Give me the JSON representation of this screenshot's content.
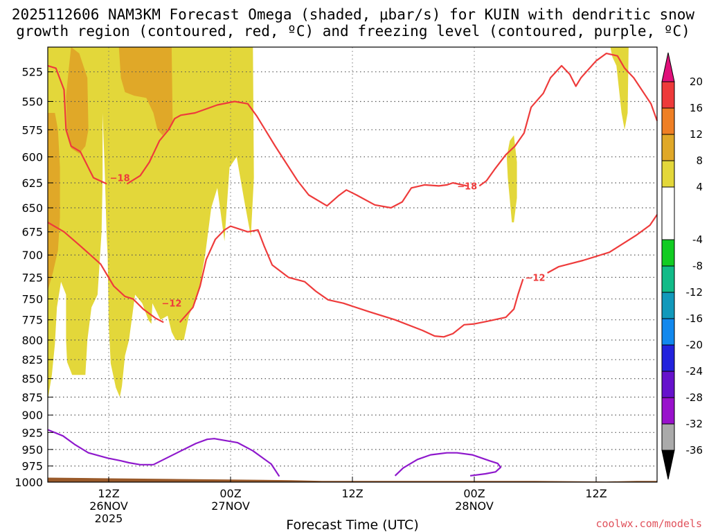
{
  "chart_data": {
    "type": "time-height-contour",
    "title_line1": "2025112606 NAM3KM Forecast Omega (shaded, μbar/s) for KUIN with dendritic snow",
    "title_line2": "growth region (contoured, red, ºC) and freezing level (contoured, purple, ºC)",
    "xlabel": "Forecast Time (UTC)",
    "credit": "coolwx.com/models",
    "x_unit": "hours since 2025-11-26 06Z",
    "xlim": [
      0,
      60
    ],
    "ylim_hPa": [
      1000,
      500
    ],
    "y_ticks": [
      525,
      550,
      575,
      600,
      625,
      650,
      675,
      700,
      725,
      750,
      775,
      800,
      825,
      850,
      875,
      900,
      925,
      950,
      975,
      1000
    ],
    "x_ticks": [
      {
        "hour": 6,
        "lines": [
          "12Z",
          "26NOV",
          "2025"
        ]
      },
      {
        "hour": 18,
        "lines": [
          "00Z",
          "27NOV"
        ]
      },
      {
        "hour": 30,
        "lines": [
          "12Z"
        ]
      },
      {
        "hour": 42,
        "lines": [
          "00Z",
          "28NOV"
        ]
      },
      {
        "hour": 54,
        "lines": [
          "12Z"
        ]
      }
    ],
    "colorbar": {
      "labels": [
        "20",
        "16",
        "12",
        "8",
        "4",
        "-4",
        "-8",
        "-12",
        "-16",
        "-20",
        "-24",
        "-28",
        "-32",
        "-36"
      ],
      "bins": [
        {
          "lo": 16,
          "hi": 20,
          "color": "#ee3a3a"
        },
        {
          "lo": 12,
          "hi": 16,
          "color": "#ef7f24"
        },
        {
          "lo": 8,
          "hi": 12,
          "color": "#e0a828"
        },
        {
          "lo": 4,
          "hi": 8,
          "color": "#e3d73a"
        },
        {
          "lo": -4,
          "hi": 4,
          "color": "#ffffff"
        },
        {
          "lo": -8,
          "hi": -4,
          "color": "#11cc22"
        },
        {
          "lo": -12,
          "hi": -8,
          "color": "#11bb88"
        },
        {
          "lo": -16,
          "hi": -12,
          "color": "#1199bb"
        },
        {
          "lo": -20,
          "hi": -16,
          "color": "#1188ee"
        },
        {
          "lo": -24,
          "hi": -20,
          "color": "#2222dd"
        },
        {
          "lo": -28,
          "hi": -24,
          "color": "#6611cc"
        },
        {
          "lo": -32,
          "hi": -28,
          "color": "#9911cc"
        },
        {
          "lo": -36,
          "hi": -32,
          "color": "#aaaaaa"
        }
      ],
      "top_arrow_color": "#e0107a",
      "bottom_arrow_color": "#000000"
    },
    "contours": [
      {
        "name": "dgz-top-minus18-west",
        "value": -18,
        "label": "−18",
        "color": "#ee3b3b",
        "label_at": [
          7.1,
          620
        ],
        "points": [
          [
            0,
            520
          ],
          [
            0.8,
            522
          ],
          [
            1.6,
            540
          ],
          [
            1.8,
            575
          ],
          [
            2.3,
            590
          ],
          [
            3.2,
            595
          ],
          [
            4.5,
            620
          ],
          [
            5.8,
            626
          ]
        ]
      },
      {
        "name": "dgz-top-minus18-main",
        "value": -18,
        "color": "#ee3b3b",
        "points": [
          [
            7.8,
            626
          ],
          [
            9.1,
            618
          ],
          [
            10,
            605
          ],
          [
            11,
            585
          ],
          [
            11.9,
            575
          ],
          [
            12.5,
            565
          ],
          [
            13.1,
            562
          ],
          [
            14.5,
            560
          ],
          [
            16.7,
            553
          ],
          [
            18.4,
            550
          ],
          [
            19.7,
            552
          ],
          [
            20.6,
            563
          ],
          [
            22.4,
            590
          ],
          [
            24.6,
            623
          ],
          [
            25.7,
            637
          ],
          [
            27.5,
            648
          ],
          [
            28.6,
            638
          ],
          [
            29.4,
            632
          ],
          [
            30.4,
            637
          ],
          [
            32.2,
            647
          ],
          [
            33.8,
            650
          ],
          [
            34.9,
            644
          ],
          [
            35.8,
            630
          ],
          [
            37.1,
            627
          ],
          [
            38.5,
            628
          ],
          [
            39.3,
            627
          ],
          [
            39.9,
            625
          ],
          [
            41.3,
            628
          ]
        ]
      },
      {
        "name": "dgz-top-minus18-east",
        "value": -18,
        "label": "−18",
        "color": "#ee3b3b",
        "label_at": [
          41.3,
          628
        ],
        "points": [
          [
            42.5,
            628
          ],
          [
            43.2,
            623
          ],
          [
            44,
            612
          ],
          [
            45.1,
            598
          ],
          [
            46,
            590
          ],
          [
            46.9,
            578
          ],
          [
            47.6,
            555
          ],
          [
            48.8,
            543
          ],
          [
            49.5,
            530
          ],
          [
            50.6,
            520
          ],
          [
            51.4,
            527
          ],
          [
            52,
            537
          ],
          [
            52.5,
            530
          ],
          [
            54,
            516
          ],
          [
            55,
            510
          ],
          [
            56.1,
            512
          ],
          [
            56.8,
            522
          ],
          [
            57.7,
            530
          ],
          [
            59.4,
            552
          ],
          [
            60,
            567
          ]
        ]
      },
      {
        "name": "dgz-bottom-minus12-west",
        "value": -12,
        "label": "−12",
        "color": "#ee3b3b",
        "label_at": [
          12.2,
          755
        ],
        "points": [
          [
            0,
            665
          ],
          [
            1.6,
            675
          ],
          [
            3.2,
            690
          ],
          [
            5.2,
            710
          ],
          [
            6.5,
            735
          ],
          [
            7.6,
            747
          ],
          [
            8.4,
            750
          ],
          [
            9.4,
            762
          ],
          [
            10.6,
            773
          ],
          [
            11.4,
            778
          ]
        ]
      },
      {
        "name": "dgz-bottom-minus12-main",
        "value": -12,
        "color": "#ee3b3b",
        "points": [
          [
            13,
            778
          ],
          [
            14.3,
            760
          ],
          [
            15,
            735
          ],
          [
            15.6,
            705
          ],
          [
            16.5,
            683
          ],
          [
            17.4,
            673
          ],
          [
            18,
            669
          ],
          [
            19.7,
            675
          ],
          [
            20.7,
            673
          ],
          [
            21.3,
            690
          ],
          [
            22.1,
            711
          ],
          [
            23.7,
            725
          ],
          [
            25.3,
            730
          ],
          [
            26.4,
            741
          ],
          [
            27.6,
            751
          ],
          [
            29.1,
            755
          ],
          [
            31.6,
            765
          ],
          [
            34.2,
            775
          ],
          [
            36.9,
            788
          ],
          [
            38.1,
            795
          ],
          [
            39,
            796
          ],
          [
            39.9,
            792
          ],
          [
            41,
            781
          ],
          [
            42,
            780
          ],
          [
            43.2,
            777
          ],
          [
            45.1,
            772
          ],
          [
            45.9,
            762
          ],
          [
            46.3,
            745
          ],
          [
            46.8,
            727
          ]
        ]
      },
      {
        "name": "dgz-bottom-minus12-east",
        "value": -12,
        "label": "−12",
        "color": "#ee3b3b",
        "label_at": [
          48,
          725
        ],
        "points": [
          [
            49.2,
            720
          ],
          [
            50.3,
            713
          ],
          [
            52.7,
            706
          ],
          [
            55.3,
            697
          ],
          [
            57.9,
            679
          ],
          [
            59.3,
            668
          ],
          [
            60,
            657
          ]
        ]
      },
      {
        "name": "freezing-level-0C-west",
        "value": 0,
        "color": "#8e18cc",
        "points": [
          [
            0,
            921
          ],
          [
            1.5,
            930
          ],
          [
            2.7,
            943
          ],
          [
            4,
            955
          ],
          [
            5.9,
            963
          ],
          [
            7.2,
            967
          ],
          [
            8,
            970
          ],
          [
            9.1,
            973
          ],
          [
            10.4,
            973
          ],
          [
            11.3,
            966
          ],
          [
            13,
            953
          ],
          [
            14.6,
            941
          ],
          [
            15.7,
            935
          ],
          [
            16.4,
            934
          ],
          [
            18.7,
            940
          ],
          [
            20.2,
            952
          ],
          [
            21.1,
            962
          ],
          [
            22,
            972
          ],
          [
            22.8,
            991
          ]
        ]
      },
      {
        "name": "freezing-level-0C-east",
        "value": 0,
        "color": "#8e18cc",
        "points": [
          [
            34.2,
            990
          ],
          [
            35,
            978
          ],
          [
            36.4,
            965
          ],
          [
            37.7,
            958
          ],
          [
            39.3,
            955
          ],
          [
            40.3,
            955
          ],
          [
            41.8,
            958
          ],
          [
            43.5,
            967
          ],
          [
            44.3,
            971
          ],
          [
            44.6,
            977
          ],
          [
            44.1,
            984
          ],
          [
            43.1,
            987
          ],
          [
            41.6,
            990
          ]
        ]
      }
    ],
    "omega_shading": [
      {
        "name": "omega-4-8-west",
        "range": "4 to 8",
        "color": "#e3d73a",
        "points": [
          [
            0,
            505
          ],
          [
            20.2,
            505
          ],
          [
            20.3,
            620
          ],
          [
            20,
            680
          ],
          [
            19.3,
            640
          ],
          [
            18.6,
            600
          ],
          [
            17.9,
            610
          ],
          [
            17.4,
            685
          ],
          [
            16.7,
            630
          ],
          [
            16.1,
            650
          ],
          [
            15.5,
            700
          ],
          [
            14.9,
            740
          ],
          [
            13.9,
            770
          ],
          [
            13.4,
            800
          ],
          [
            12.6,
            800
          ],
          [
            12.2,
            790
          ],
          [
            11.8,
            770
          ],
          [
            11.1,
            775
          ],
          [
            10.3,
            755
          ],
          [
            10.2,
            780
          ],
          [
            9.9,
            775
          ],
          [
            9.3,
            755
          ],
          [
            8.6,
            745
          ],
          [
            8,
            800
          ],
          [
            7.6,
            820
          ],
          [
            7.3,
            860
          ],
          [
            7.1,
            875
          ],
          [
            6.7,
            862
          ],
          [
            6.2,
            830
          ],
          [
            6,
            780
          ],
          [
            5.9,
            700
          ],
          [
            5.8,
            680
          ],
          [
            5.6,
            610
          ],
          [
            5.4,
            560
          ],
          [
            5.4,
            620
          ],
          [
            5.3,
            675
          ],
          [
            4.9,
            745
          ],
          [
            4.3,
            760
          ],
          [
            3.9,
            800
          ],
          [
            3.7,
            845
          ],
          [
            2.4,
            845
          ],
          [
            1.9,
            828
          ],
          [
            1.8,
            800
          ],
          [
            1.8,
            745
          ],
          [
            1.3,
            730
          ],
          [
            0.9,
            760
          ],
          [
            0.7,
            805
          ],
          [
            0.4,
            845
          ],
          [
            0.1,
            870
          ],
          [
            0,
            880
          ]
        ]
      },
      {
        "name": "omega-4-8-east-upper",
        "range": "4 to 8",
        "color": "#e3d73a",
        "points": [
          [
            55.4,
            505
          ],
          [
            57.2,
            505
          ],
          [
            57.1,
            560
          ],
          [
            56.8,
            575
          ],
          [
            56.5,
            560
          ],
          [
            56,
            520
          ],
          [
            55.6,
            513
          ]
        ]
      },
      {
        "name": "omega-4-8-east-mid",
        "range": "4 to 8",
        "color": "#e3d73a",
        "points": [
          [
            45.9,
            580
          ],
          [
            46.2,
            605
          ],
          [
            46.2,
            640
          ],
          [
            45.9,
            665
          ],
          [
            45.7,
            665
          ],
          [
            45.3,
            620
          ],
          [
            45.2,
            600
          ],
          [
            45.5,
            585
          ]
        ]
      },
      {
        "name": "omega-8-12-a",
        "range": "8 to 12",
        "color": "#e0a828",
        "points": [
          [
            2.3,
            505
          ],
          [
            3.1,
            510
          ],
          [
            3.9,
            530
          ],
          [
            4,
            575
          ],
          [
            3.7,
            590
          ],
          [
            3.1,
            597
          ],
          [
            2.3,
            592
          ],
          [
            1.9,
            575
          ],
          [
            1.8,
            545
          ],
          [
            2.1,
            520
          ]
        ]
      },
      {
        "name": "omega-8-12-b",
        "range": "8 to 12",
        "color": "#e0a828",
        "points": [
          [
            0,
            560
          ],
          [
            0.7,
            560
          ],
          [
            1,
            575
          ],
          [
            1.2,
            610
          ],
          [
            1.2,
            660
          ],
          [
            1,
            695
          ],
          [
            0.5,
            720
          ],
          [
            0,
            740
          ]
        ]
      },
      {
        "name": "omega-8-12-c",
        "range": "8 to 12",
        "color": "#e0a828",
        "points": [
          [
            7,
            505
          ],
          [
            12.2,
            505
          ],
          [
            12.3,
            570
          ],
          [
            11.3,
            580
          ],
          [
            10.8,
            575
          ],
          [
            10.4,
            560
          ],
          [
            9.7,
            547
          ],
          [
            8.5,
            545
          ],
          [
            7.6,
            542
          ],
          [
            7.2,
            530
          ]
        ]
      }
    ],
    "surface_terrain": {
      "name": "surface-terrain",
      "color": "#9a5a2a",
      "points": [
        [
          0,
          993
        ],
        [
          6,
          994
        ],
        [
          12,
          995
        ],
        [
          18,
          996
        ],
        [
          24,
          997
        ],
        [
          27,
          998
        ],
        [
          36,
          998
        ],
        [
          42,
          998
        ],
        [
          48,
          998
        ],
        [
          55,
          999
        ],
        [
          58,
          998
        ],
        [
          60,
          998
        ],
        [
          60,
          1000
        ],
        [
          0,
          1000
        ]
      ]
    }
  }
}
